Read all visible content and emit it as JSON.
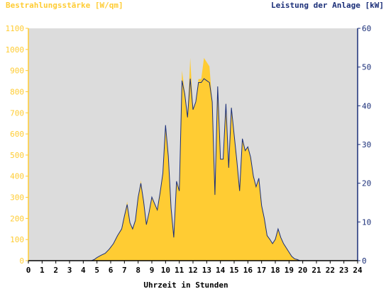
{
  "colors": {
    "background": "#ffffff",
    "plot_bg": "#dcdcdc",
    "area": "#ffcc33",
    "line": "#1a2e78",
    "left_axis_text": "#ffcc33",
    "right_axis_text": "#1a2e78",
    "x_axis_text": "#000000"
  },
  "chart_data": {
    "type": "area",
    "title_left": "Bestrahlungsstärke [W/qm]",
    "title_right": "Leistung der Anlage [kW]",
    "xlabel": "Uhrzeit in Stunden",
    "xlim": [
      0,
      24
    ],
    "ylim_left": [
      0,
      1100
    ],
    "ylim_right": [
      0,
      60
    ],
    "x_ticks": [
      "0",
      "1",
      "2",
      "3",
      "4",
      "5",
      "6",
      "7",
      "8",
      "9",
      "10",
      "11",
      "12",
      "13",
      "14",
      "15",
      "16",
      "17",
      "18",
      "19",
      "20",
      "21",
      "22",
      "23",
      "24"
    ],
    "y_left_ticks": [
      "0",
      "100",
      "200",
      "300",
      "400",
      "500",
      "600",
      "700",
      "800",
      "900",
      "1000",
      "1100"
    ],
    "y_right_ticks": [
      "0",
      "10",
      "20",
      "30",
      "40",
      "50",
      "60"
    ],
    "grid": false,
    "series": [
      {
        "name": "Bestrahlungsstärke [W/qm]",
        "axis": "left",
        "style": "area",
        "x": [
          0,
          4.6,
          4.8,
          5.0,
          5.3,
          5.6,
          5.9,
          6.2,
          6.5,
          6.8,
          7.0,
          7.2,
          7.4,
          7.6,
          7.8,
          8.0,
          8.2,
          8.4,
          8.6,
          8.8,
          9.0,
          9.2,
          9.4,
          9.6,
          9.8,
          10.0,
          10.2,
          10.4,
          10.6,
          10.8,
          11.0,
          11.2,
          11.4,
          11.6,
          11.8,
          12.0,
          12.2,
          12.4,
          12.6,
          12.8,
          13.0,
          13.2,
          13.4,
          13.6,
          13.8,
          14.0,
          14.2,
          14.4,
          14.6,
          14.8,
          15.0,
          15.2,
          15.4,
          15.6,
          15.8,
          16.0,
          16.2,
          16.4,
          16.6,
          16.8,
          17.0,
          17.2,
          17.4,
          17.6,
          17.8,
          18.0,
          18.2,
          18.4,
          18.6,
          18.8,
          19.0,
          19.2,
          19.4,
          19.6,
          19.8,
          20.0,
          20.2,
          20.4,
          24
        ],
        "y": [
          0,
          0,
          5,
          15,
          25,
          35,
          55,
          80,
          120,
          150,
          210,
          280,
          180,
          150,
          190,
          300,
          380,
          280,
          170,
          230,
          300,
          270,
          240,
          320,
          420,
          630,
          500,
          250,
          110,
          380,
          330,
          900,
          800,
          680,
          960,
          720,
          750,
          860,
          860,
          960,
          940,
          920,
          750,
          310,
          830,
          480,
          480,
          750,
          440,
          730,
          600,
          470,
          330,
          580,
          520,
          540,
          490,
          400,
          350,
          390,
          260,
          200,
          120,
          100,
          80,
          100,
          150,
          110,
          80,
          60,
          40,
          20,
          10,
          5,
          0,
          0,
          0,
          0,
          0
        ]
      },
      {
        "name": "Leistung der Anlage [kW]",
        "axis": "right",
        "style": "line",
        "x": [
          0,
          4.6,
          4.8,
          5.0,
          5.3,
          5.6,
          5.9,
          6.2,
          6.5,
          6.8,
          7.0,
          7.2,
          7.4,
          7.6,
          7.8,
          8.0,
          8.2,
          8.4,
          8.6,
          8.8,
          9.0,
          9.2,
          9.4,
          9.6,
          9.8,
          10.0,
          10.2,
          10.4,
          10.6,
          10.8,
          11.0,
          11.2,
          11.4,
          11.6,
          11.8,
          12.0,
          12.2,
          12.4,
          12.6,
          12.8,
          13.0,
          13.2,
          13.4,
          13.6,
          13.8,
          14.0,
          14.2,
          14.4,
          14.6,
          14.8,
          15.0,
          15.2,
          15.4,
          15.6,
          15.8,
          16.0,
          16.2,
          16.4,
          16.6,
          16.8,
          17.0,
          17.2,
          17.4,
          17.6,
          17.8,
          18.0,
          18.2,
          18.4,
          18.6,
          18.8,
          19.0,
          19.2,
          19.4,
          19.6,
          19.8,
          20.0,
          20.2,
          20.4,
          24
        ],
        "y": [
          0,
          0,
          0.3,
          0.8,
          1.4,
          1.9,
          3.0,
          4.4,
          6.5,
          8.2,
          11.5,
          14.5,
          9.8,
          8.2,
          10.4,
          16.4,
          20.0,
          15.3,
          9.3,
          12.5,
          16.4,
          14.7,
          13.1,
          17.5,
          22.5,
          35.0,
          27.0,
          13.6,
          6.0,
          20.5,
          18.0,
          46.5,
          43.0,
          37.0,
          47.0,
          39.0,
          41.0,
          46.0,
          46.0,
          47.0,
          46.5,
          46.0,
          41.0,
          17.0,
          45.0,
          26.2,
          26.2,
          40.5,
          24.0,
          39.5,
          32.5,
          25.6,
          18.0,
          31.5,
          28.4,
          29.4,
          26.7,
          21.8,
          19.1,
          21.3,
          14.2,
          10.9,
          6.5,
          5.5,
          4.4,
          5.5,
          8.2,
          6.0,
          4.4,
          3.3,
          2.2,
          1.1,
          0.5,
          0.3,
          0,
          0,
          0,
          0,
          0
        ]
      }
    ]
  }
}
